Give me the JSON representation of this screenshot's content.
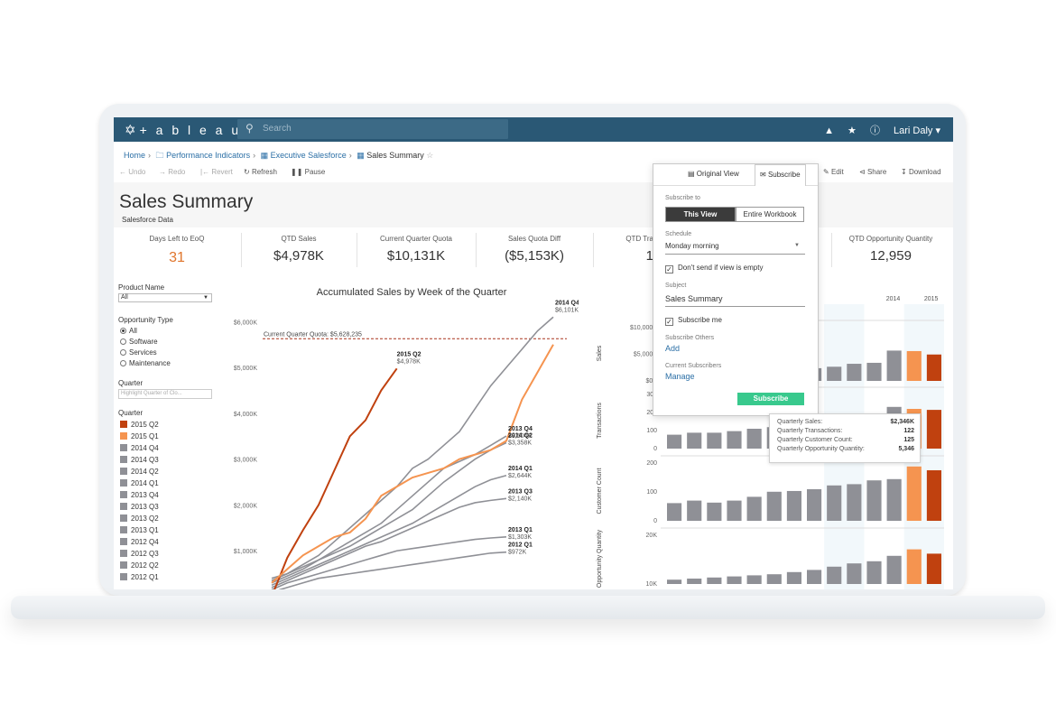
{
  "app": {
    "logo": "+ a b l e a u",
    "search_placeholder": "Search",
    "user": "Lari Daly ▾"
  },
  "breadcrumb": {
    "items": [
      "Home",
      "Performance Indicators",
      "Executive Salesforce",
      "Sales Summary"
    ]
  },
  "toolbar": {
    "undo": "Undo",
    "redo": "Redo",
    "revert": "Revert",
    "refresh": "Refresh",
    "pause": "Pause",
    "original_view": "Original View",
    "subscribe": "Subscribe",
    "edit": "Edit",
    "share": "Share",
    "download": "Download"
  },
  "header": {
    "title": "Sales Summary",
    "subtitle": "Salesforce Data"
  },
  "kpis": [
    {
      "label": "Days Left to EoQ",
      "value": "31"
    },
    {
      "label": "QTD Sales",
      "value": "$4,978K"
    },
    {
      "label": "Current Quarter Quota",
      "value": "$10,131K"
    },
    {
      "label": "Sales Quota Diff",
      "value": "($5,153K)"
    },
    {
      "label": "QTD Tra",
      "value": "1"
    },
    {
      "label": "QTD Opportunity Quantity",
      "value": "12,959"
    }
  ],
  "filters": {
    "product_label": "Product Name",
    "product_value": "All",
    "opp_label": "Opportunity Type",
    "opp_options": [
      "All",
      "Software",
      "Services",
      "Maintenance"
    ],
    "quarter_label": "Quarter",
    "quarter_placeholder": "Highlight Quarter of Clo...",
    "legend_label": "Quarter",
    "legend": [
      {
        "label": "2015 Q2",
        "color": "#c0410f"
      },
      {
        "label": "2015 Q1",
        "color": "#f59450"
      },
      {
        "label": "2014 Q4",
        "color": "#8f9096"
      },
      {
        "label": "2014 Q3",
        "color": "#8f9096"
      },
      {
        "label": "2014 Q2",
        "color": "#8f9096"
      },
      {
        "label": "2014 Q1",
        "color": "#8f9096"
      },
      {
        "label": "2013 Q4",
        "color": "#8f9096"
      },
      {
        "label": "2013 Q3",
        "color": "#8f9096"
      },
      {
        "label": "2013 Q2",
        "color": "#8f9096"
      },
      {
        "label": "2013 Q1",
        "color": "#8f9096"
      },
      {
        "label": "2012 Q4",
        "color": "#8f9096"
      },
      {
        "label": "2012 Q3",
        "color": "#8f9096"
      },
      {
        "label": "2012 Q2",
        "color": "#8f9096"
      },
      {
        "label": "2012 Q1",
        "color": "#8f9096"
      }
    ]
  },
  "subscribe_panel": {
    "subscribe_to": "Subscribe to",
    "this_view": "This View",
    "entire_workbook": "Entire Workbook",
    "schedule_label": "Schedule",
    "schedule_value": "Monday morning",
    "dont_send": "Don't send if view is empty",
    "subject_label": "Subject",
    "subject_value": "Sales Summary",
    "subscribe_me": "Subscribe me",
    "others_label": "Subscribe Others",
    "add": "Add",
    "current_label": "Current Subscribers",
    "manage": "Manage",
    "button": "Subscribe"
  },
  "tooltip": [
    {
      "k": "Quarterly Sales:",
      "v": "$2,346K"
    },
    {
      "k": "Quarterly Transactions:",
      "v": "122"
    },
    {
      "k": "Quarterly Customer Count:",
      "v": "125"
    },
    {
      "k": "Quarterly Opportunity Quantity:",
      "v": "5,346"
    }
  ],
  "chart_data": [
    {
      "type": "line",
      "title": "Accumulated Sales by Week of the Quarter",
      "ylim": [
        0,
        6500000
      ],
      "yticks": [
        "$1,000K",
        "$2,000K",
        "$3,000K",
        "$4,000K",
        "$5,000K",
        "$6,000K"
      ],
      "quota_label": "Current Quarter Quota: $5,628,235",
      "quota_value": 5628235,
      "series": [
        {
          "name": "2015 Q2",
          "color": "#c0410f",
          "values": [
            0,
            850,
            1450,
            2000,
            2750,
            3500,
            3850,
            4500,
            4978
          ]
        },
        {
          "name": "2015 Q1",
          "color": "#f59450",
          "values": [
            300,
            600,
            900,
            1100,
            1300,
            1400,
            1700,
            2200,
            2400,
            2600,
            2700,
            2800,
            3000,
            3100,
            3200,
            3400,
            4300,
            4900,
            5500
          ]
        },
        {
          "name": "2014 Q4",
          "color": "#8f9096",
          "values": [
            400,
            500,
            700,
            900,
            1200,
            1500,
            1800,
            2100,
            2400,
            2800,
            3000,
            3300,
            3600,
            4100,
            4600,
            5000,
            5400,
            5800,
            6101
          ]
        },
        {
          "name": "2013 Q4",
          "color": "#8f9096",
          "values": [
            300,
            450,
            600,
            800,
            1000,
            1200,
            1400,
            1600,
            1900,
            2200,
            2500,
            2800,
            2950,
            3100,
            3300,
            3504
          ]
        },
        {
          "name": "2014 Q2",
          "color": "#8f9096",
          "values": [
            350,
            500,
            650,
            800,
            950,
            1100,
            1300,
            1500,
            1700,
            1900,
            2200,
            2500,
            2750,
            3000,
            3200,
            3358
          ]
        },
        {
          "name": "2014 Q1",
          "color": "#8f9096",
          "values": [
            250,
            400,
            550,
            700,
            850,
            1000,
            1150,
            1300,
            1450,
            1600,
            1800,
            2000,
            2200,
            2400,
            2550,
            2644
          ]
        },
        {
          "name": "2013 Q3",
          "color": "#8f9096",
          "values": [
            200,
            350,
            500,
            650,
            800,
            950,
            1100,
            1200,
            1350,
            1500,
            1650,
            1800,
            1950,
            2050,
            2100,
            2140
          ]
        },
        {
          "name": "2013 Q1",
          "color": "#8f9096",
          "values": [
            150,
            300,
            400,
            500,
            600,
            700,
            800,
            900,
            1000,
            1050,
            1100,
            1150,
            1200,
            1250,
            1280,
            1303
          ]
        },
        {
          "name": "2012 Q1",
          "color": "#8f9096",
          "values": [
            100,
            200,
            300,
            400,
            450,
            500,
            550,
            600,
            650,
            700,
            750,
            800,
            850,
            900,
            950,
            972
          ]
        }
      ],
      "end_labels": [
        {
          "name": "2014 Q4",
          "value": "$6,101K"
        },
        {
          "name": "2015 Q2",
          "value": "$4,978K"
        },
        {
          "name": "2013 Q4",
          "value": "$3,504K"
        },
        {
          "name": "2014 Q2",
          "value": "$3,358K"
        },
        {
          "name": "2014 Q1",
          "value": "$2,644K"
        },
        {
          "name": "2013 Q3",
          "value": "$2,140K"
        },
        {
          "name": "2013 Q1",
          "value": "$1,303K"
        },
        {
          "name": "2012 Q1",
          "value": "$972K"
        }
      ]
    },
    {
      "type": "bar",
      "title": "",
      "categories": [
        "2012 Q1",
        "2012 Q2",
        "2012 Q3",
        "2012 Q4",
        "2013 Q1",
        "2013 Q2",
        "2013 Q3",
        "2013 Q4",
        "2014 Q1",
        "2014 Q2",
        "2014 Q3",
        "2014 Q4",
        "2015 Q1",
        "2015 Q2"
      ],
      "year_labels": [
        "2014",
        "2015"
      ],
      "panels": [
        {
          "ylabel": "Sales",
          "yticks": [
            "$0K",
            "$5,000K",
            "$10,000K"
          ],
          "ymax": 12000,
          "values": [
            2300,
            2200,
            2200,
            2300,
            2200,
            2400,
            2500,
            2600,
            2900,
            3500,
            3700,
            6200,
            6100,
            5400
          ]
        },
        {
          "ylabel": "Transactions",
          "yticks": [
            "0",
            "100",
            "200",
            "300"
          ],
          "ymax": 300,
          "values": [
            70,
            80,
            80,
            88,
            100,
            108,
            118,
            125,
            150,
            165,
            175,
            210,
            200,
            195
          ]
        },
        {
          "ylabel": "Customer Count",
          "yticks": [
            "0",
            "100",
            "200"
          ],
          "ymax": 250,
          "values": [
            70,
            80,
            72,
            80,
            95,
            115,
            118,
            125,
            140,
            145,
            160,
            165,
            215,
            200
          ]
        },
        {
          "ylabel": "Opportunity Quantity",
          "yticks": [
            "10K",
            "20K"
          ],
          "ymax": 25000,
          "values": [
            2000,
            2500,
            3000,
            3500,
            4000,
            4500,
            5500,
            6500,
            8000,
            9500,
            10500,
            13000,
            16000,
            14000
          ]
        }
      ]
    }
  ]
}
